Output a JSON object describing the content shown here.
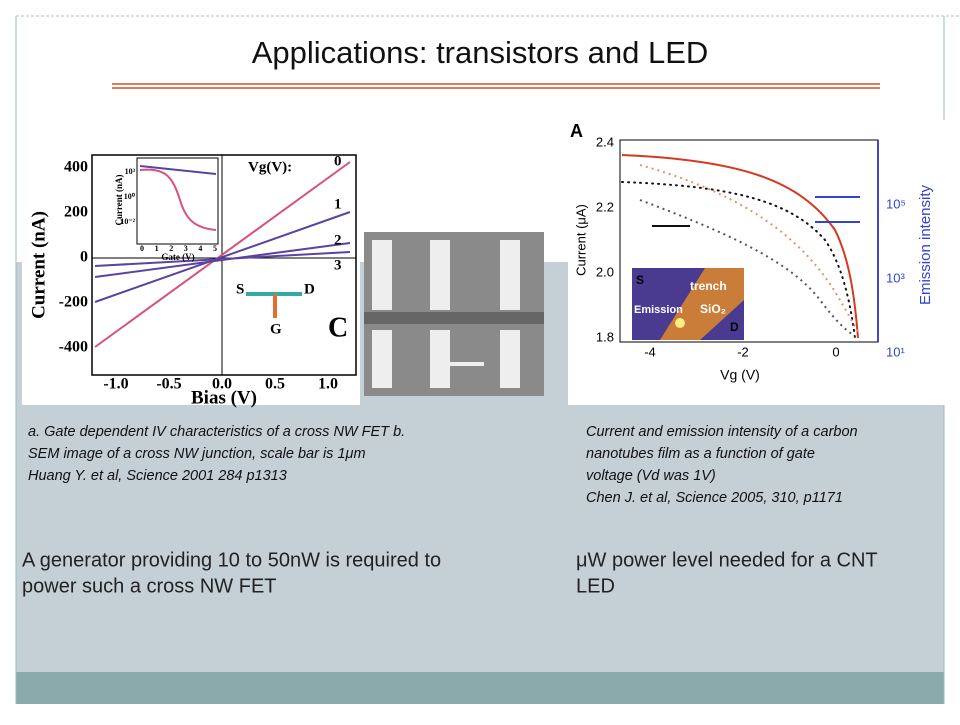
{
  "title": "Applications: transistors and LED",
  "left_figure": {
    "y_label": "Current (nA)",
    "x_label": "Bias (V)",
    "yticks": [
      "400",
      "200",
      "0",
      "-200",
      "-400"
    ],
    "xticks": [
      "-1.0",
      "-0.5",
      "0.0",
      "0.5",
      "1.0"
    ],
    "legend_title": "Vg(V):",
    "curve_labels": [
      "0",
      "1",
      "2",
      "3"
    ],
    "panel": "C",
    "device_labels": [
      "S",
      "D",
      "G"
    ],
    "inset": {
      "y_label": "Current (nA)",
      "x_label": "Gate (V)",
      "yticks": [
        "10³",
        "10⁰",
        "10⁻²"
      ],
      "xticks": [
        "0",
        "1",
        "2",
        "3",
        "4",
        "5"
      ]
    }
  },
  "right_figure": {
    "panel": "A",
    "y_label": "Current (μA)",
    "x_label": "Vg (V)",
    "yticks": [
      "2.4",
      "2.2",
      "2.0",
      "1.8"
    ],
    "xticks": [
      "-4",
      "-2",
      "0"
    ],
    "y2_label": "Emission intensity",
    "y2ticks": [
      "10⁵",
      "10³",
      "10¹"
    ],
    "inset_labels": [
      "S",
      "trench",
      "Emission",
      "SiO₂",
      "D"
    ]
  },
  "left_caption": [
    "a. Gate dependent IV characteristics of a cross NW FET b.",
    "SEM image of a cross NW junction, scale bar is 1μm",
    "Huang Y. et al, Science 2001  284 p1313"
  ],
  "right_caption": [
    "Current and emission intensity of a carbon",
    "nanotubes film as a function of gate",
    "voltage (Vd was 1V)",
    "Chen J. et al, Science 2005, 310, p1171"
  ],
  "left_text": [
    "A generator providing 10 to 50nW is required to",
    "power such a cross NW FET"
  ],
  "right_text": [
    "μW power level needed for a CNT",
    "LED"
  ]
}
